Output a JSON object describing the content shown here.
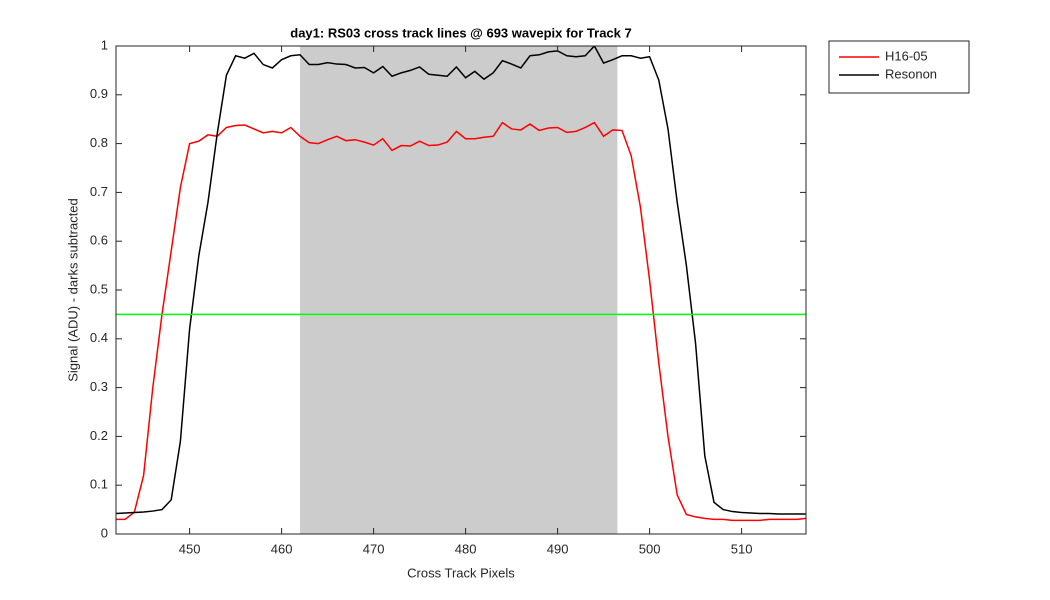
{
  "chart_data": {
    "type": "line",
    "title": "day1: RS03  cross track lines @ 693 wavepix for Track 7",
    "xlabel": "Cross Track Pixels",
    "ylabel": "Signal (ADU) - darks subtracted",
    "x": [
      442,
      443,
      444,
      445,
      446,
      447,
      448,
      449,
      450,
      451,
      452,
      453,
      454,
      455,
      456,
      457,
      458,
      459,
      460,
      461,
      462,
      463,
      464,
      465,
      466,
      467,
      468,
      469,
      470,
      471,
      472,
      473,
      474,
      475,
      476,
      477,
      478,
      479,
      480,
      481,
      482,
      483,
      484,
      485,
      486,
      487,
      488,
      489,
      490,
      491,
      492,
      493,
      494,
      495,
      496,
      497,
      498,
      499,
      500,
      501,
      502,
      503,
      504,
      505,
      506,
      507,
      508,
      509,
      510,
      511,
      512,
      513,
      514,
      515,
      516,
      517
    ],
    "series": [
      {
        "name": "H16-05",
        "color": "#ff0000",
        "values": [
          0.03,
          0.03,
          0.045,
          0.12,
          0.3,
          0.45,
          0.58,
          0.71,
          0.8,
          0.805,
          0.818,
          0.815,
          0.833,
          0.837,
          0.838,
          0.83,
          0.822,
          0.825,
          0.822,
          0.833,
          0.815,
          0.802,
          0.8,
          0.808,
          0.815,
          0.806,
          0.808,
          0.803,
          0.797,
          0.81,
          0.786,
          0.796,
          0.795,
          0.805,
          0.796,
          0.797,
          0.803,
          0.825,
          0.81,
          0.81,
          0.813,
          0.815,
          0.843,
          0.83,
          0.828,
          0.84,
          0.827,
          0.832,
          0.833,
          0.823,
          0.825,
          0.833,
          0.843,
          0.815,
          0.828,
          0.827,
          0.775,
          0.67,
          0.52,
          0.35,
          0.2,
          0.08,
          0.04,
          0.035,
          0.032,
          0.03,
          0.03,
          0.028,
          0.028,
          0.028,
          0.028,
          0.03,
          0.03,
          0.03,
          0.03,
          0.032
        ]
      },
      {
        "name": "Resonon",
        "color": "#000000",
        "values": [
          0.042,
          0.043,
          0.044,
          0.045,
          0.047,
          0.05,
          0.07,
          0.19,
          0.42,
          0.57,
          0.68,
          0.82,
          0.94,
          0.98,
          0.975,
          0.985,
          0.962,
          0.955,
          0.972,
          0.98,
          0.982,
          0.962,
          0.962,
          0.966,
          0.963,
          0.962,
          0.955,
          0.956,
          0.945,
          0.958,
          0.938,
          0.945,
          0.95,
          0.957,
          0.942,
          0.94,
          0.938,
          0.957,
          0.935,
          0.948,
          0.932,
          0.945,
          0.97,
          0.963,
          0.955,
          0.98,
          0.982,
          0.988,
          0.99,
          0.98,
          0.978,
          0.98,
          1.0,
          0.965,
          0.972,
          0.98,
          0.98,
          0.975,
          0.978,
          0.93,
          0.83,
          0.68,
          0.55,
          0.39,
          0.16,
          0.065,
          0.05,
          0.046,
          0.044,
          0.043,
          0.042,
          0.042,
          0.041,
          0.041,
          0.041,
          0.041
        ]
      }
    ],
    "xlim": [
      442,
      517
    ],
    "ylim": [
      0,
      1
    ],
    "xticks": [
      450,
      460,
      470,
      480,
      490,
      500,
      510
    ],
    "yticks": [
      0,
      0.1,
      0.2,
      0.3,
      0.4,
      0.5,
      0.6,
      0.7,
      0.8,
      0.9,
      1
    ],
    "shaded_region": {
      "range": [
        462,
        496.5
      ],
      "color": "#cccccc"
    },
    "reference_line": {
      "value": 0.45,
      "color": "#00ff00"
    },
    "legend": "outside-top-right"
  }
}
